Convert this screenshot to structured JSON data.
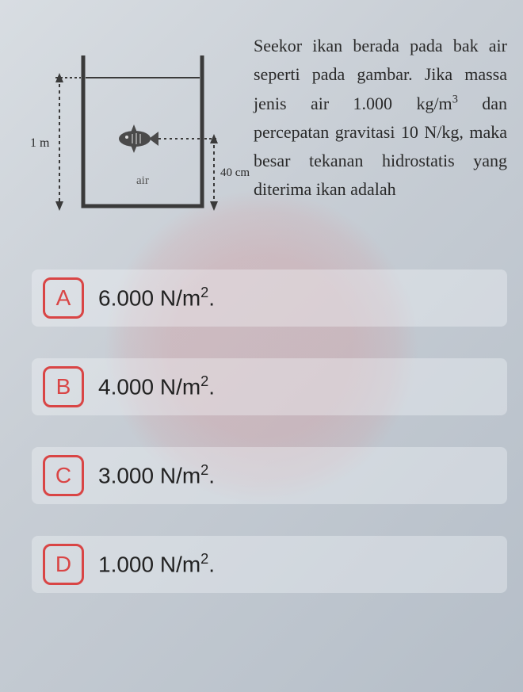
{
  "question": {
    "text_html": "Seekor ikan berada pada bak air seperti pada gambar. Jika massa jenis air 1.000 kg/m<sup>3</sup> dan percepatan gravitasi 10 N/kg, maka besar tekanan hidrostatis yang diterima ikan adalah"
  },
  "diagram": {
    "left_label": "1 m",
    "right_label": "40 cm",
    "medium_label": "air",
    "tank_color": "#3a3a3a",
    "water_fill": "rgba(180,190,200,0.15)",
    "arrow_color": "#3a3a3a"
  },
  "options": [
    {
      "letter": "A",
      "text_html": "6.000 N/m<sup>2</sup>."
    },
    {
      "letter": "B",
      "text_html": "4.000 N/m<sup>2</sup>."
    },
    {
      "letter": "C",
      "text_html": "3.000 N/m<sup>2</sup>."
    },
    {
      "letter": "D",
      "text_html": "1.000 N/m<sup>2</sup>."
    }
  ],
  "style": {
    "option_border_color": "#d94545",
    "option_text_color": "#222"
  }
}
